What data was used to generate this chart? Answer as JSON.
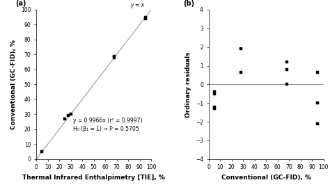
{
  "plot_a": {
    "title": "(a)",
    "scatter_x": [
      5,
      25,
      28,
      30,
      68,
      68,
      95,
      95
    ],
    "scatter_y": [
      5,
      27,
      29,
      30,
      68,
      69,
      94,
      95
    ],
    "line_x": [
      0,
      100
    ],
    "line_y": [
      0,
      100
    ],
    "yx_annotation": "y = x",
    "yx_ann_x": 88,
    "yx_ann_y": 101,
    "eq_text": "y = 0.9966x (r² = 0.9997)\nH₀ (β₁ = 1) → P = 0.5705",
    "eq_x": 32,
    "eq_y": 23,
    "xlabel": "Thermal Infrared Enthalpimetry [TIE], %",
    "ylabel": "Conventional (GC-FID), %",
    "xlim": [
      0,
      100
    ],
    "ylim": [
      0,
      100
    ],
    "xticks": [
      0,
      10,
      20,
      30,
      40,
      50,
      60,
      70,
      80,
      90,
      100
    ],
    "yticks": [
      0,
      10,
      20,
      30,
      40,
      50,
      60,
      70,
      80,
      90,
      100
    ]
  },
  "plot_b": {
    "title": "(b)",
    "scatter_x": [
      5,
      5,
      5,
      5,
      28,
      28,
      68,
      68,
      68,
      95,
      95,
      95
    ],
    "scatter_y": [
      -0.5,
      -0.4,
      -1.2,
      -1.3,
      1.9,
      0.65,
      1.2,
      0.8,
      0.0,
      0.65,
      -1.0,
      -2.1
    ],
    "hline": 0,
    "xlabel": "Conventional (GC-FID), %",
    "ylabel": "Ordinary residuals",
    "xlim": [
      0,
      100
    ],
    "ylim": [
      -4,
      4
    ],
    "xticks": [
      0,
      10,
      20,
      30,
      40,
      50,
      60,
      70,
      80,
      90,
      100
    ],
    "yticks": [
      -4,
      -3,
      -2,
      -1,
      0,
      1,
      2,
      3,
      4
    ]
  },
  "marker": "s",
  "marker_size": 3,
  "marker_color": "black",
  "line_color": "#999999",
  "line_width": 0.8,
  "font_size": 7,
  "label_font_size": 6.5,
  "tick_font_size": 5.5,
  "annotation_font_size": 5.5
}
